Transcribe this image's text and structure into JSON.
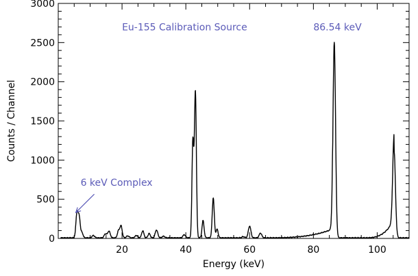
{
  "chart_data": {
    "type": "line",
    "title": "",
    "xlabel": "Energy (keV)",
    "ylabel": "Counts / Channel",
    "xlim": [
      0,
      110
    ],
    "ylim": [
      0,
      3000
    ],
    "x_ticks": [
      20,
      40,
      60,
      80,
      100
    ],
    "y_ticks": [
      0,
      500,
      1000,
      1500,
      2000,
      2500,
      3000
    ],
    "grid": false,
    "colors": {
      "line": "#000000",
      "axis": "#000000",
      "annotation": "#5b5bb8"
    },
    "annotations": [
      {
        "text": "Eu-155 Calibration Source",
        "x": 20,
        "y": 2700
      },
      {
        "text": "86.54 keV",
        "x": 80,
        "y": 2700
      },
      {
        "text": "6 keV Complex",
        "x": 7,
        "y": 670,
        "arrow_to": [
          5.5,
          330
        ]
      }
    ],
    "series": [
      {
        "baseline": 8,
        "peaks": [
          {
            "x": 5.9,
            "height": 330,
            "width": 0.35
          },
          {
            "x": 6.6,
            "height": 240,
            "width": 0.3
          },
          {
            "x": 7.4,
            "height": 70,
            "width": 0.35
          },
          {
            "x": 11.0,
            "height": 30,
            "width": 0.4
          },
          {
            "x": 14.8,
            "height": 50,
            "width": 0.4
          },
          {
            "x": 15.9,
            "height": 85,
            "width": 0.4
          },
          {
            "x": 18.9,
            "height": 90,
            "width": 0.35
          },
          {
            "x": 19.7,
            "height": 150,
            "width": 0.35
          },
          {
            "x": 21.8,
            "height": 25,
            "width": 0.4
          },
          {
            "x": 24.5,
            "height": 30,
            "width": 0.4
          },
          {
            "x": 26.5,
            "height": 90,
            "width": 0.35
          },
          {
            "x": 28.5,
            "height": 55,
            "width": 0.35
          },
          {
            "x": 30.8,
            "height": 100,
            "width": 0.4
          },
          {
            "x": 33.0,
            "height": 20,
            "width": 0.4
          },
          {
            "x": 39.5,
            "height": 40,
            "width": 0.4
          },
          {
            "x": 42.2,
            "height": 1230,
            "width": 0.28
          },
          {
            "x": 43.0,
            "height": 1870,
            "width": 0.3
          },
          {
            "x": 45.4,
            "height": 220,
            "width": 0.32
          },
          {
            "x": 48.6,
            "height": 510,
            "width": 0.32
          },
          {
            "x": 49.8,
            "height": 110,
            "width": 0.32
          },
          {
            "x": 58.0,
            "height": 15,
            "width": 0.4
          },
          {
            "x": 60.0,
            "height": 150,
            "width": 0.4
          },
          {
            "x": 63.4,
            "height": 60,
            "width": 0.4
          },
          {
            "x": 86.54,
            "height": 2500,
            "width": 0.4
          },
          {
            "x": 105.3,
            "height": 1100,
            "width": 0.42
          }
        ]
      }
    ]
  }
}
